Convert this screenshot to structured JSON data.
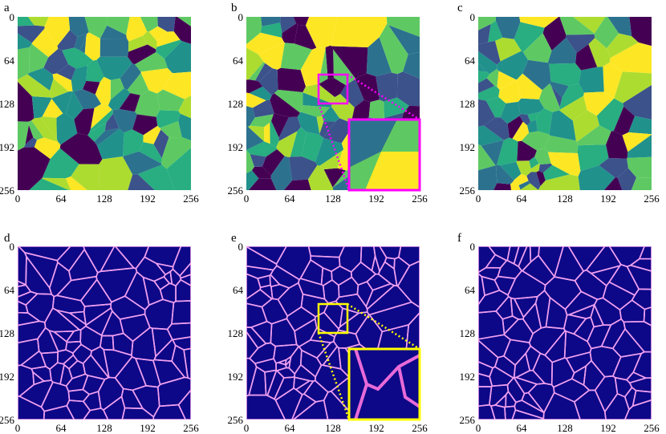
{
  "panels": [
    {
      "letter": "a",
      "type": "grain"
    },
    {
      "letter": "b",
      "type": "grain"
    },
    {
      "letter": "c",
      "type": "grain"
    },
    {
      "letter": "d",
      "type": "boundary"
    },
    {
      "letter": "e",
      "type": "boundary"
    },
    {
      "letter": "f",
      "type": "boundary"
    }
  ],
  "axes": {
    "x_ticks": [
      "0",
      "64",
      "128",
      "192",
      "256"
    ],
    "y_ticks": [
      "0",
      "64",
      "128",
      "192",
      "256"
    ]
  },
  "colors": {
    "grain_palette": [
      "#440154",
      "#3b528b",
      "#2c728e",
      "#21918c",
      "#28ae80",
      "#5ec962",
      "#addc30",
      "#fde725"
    ],
    "boundary_background": "#0d0887",
    "boundary_line": "#f0a0f0",
    "zoom_box_top": "#ff00ff",
    "zoom_box_bottom": "#ffff00"
  }
}
